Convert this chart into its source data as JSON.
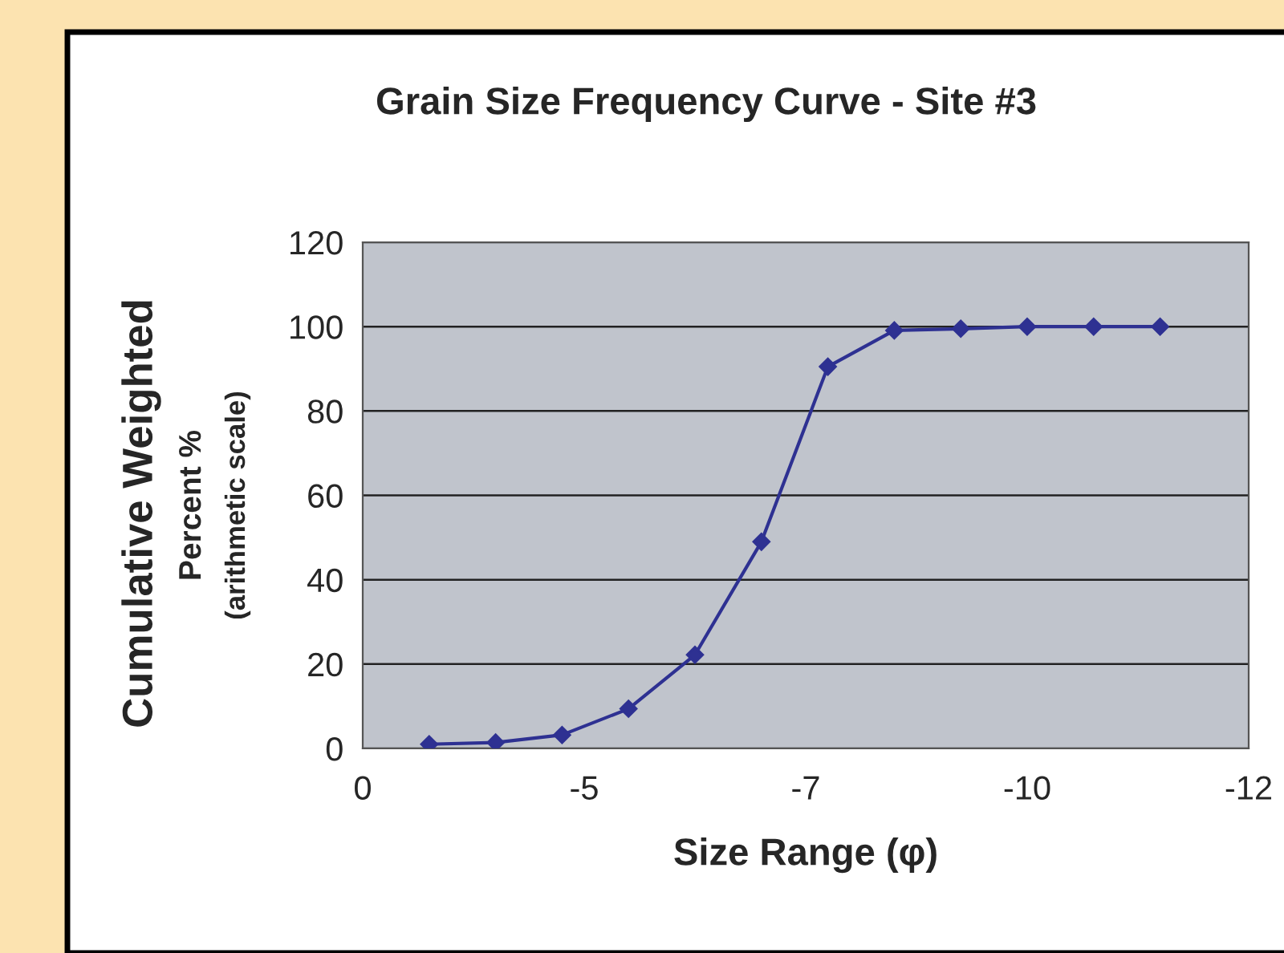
{
  "chart_data": {
    "type": "line",
    "title": "Grain Size Frequency Curve - Site #3",
    "xlabel": "Size Range (φ)",
    "ylabel": "Cumulative Weighted",
    "annotations": [
      "Percent %",
      "(arithmetic scale)"
    ],
    "categories": [
      "0",
      null,
      null,
      null,
      null,
      null,
      null,
      null,
      null,
      null,
      "-5",
      null,
      null,
      null,
      null,
      null,
      null,
      null,
      null,
      null,
      "-7",
      null,
      null,
      null,
      null,
      null,
      null,
      null,
      null,
      null,
      "-10",
      null,
      null,
      null,
      null,
      null,
      null,
      null,
      null,
      null,
      "-12"
    ],
    "series": [
      {
        "color": "#2e3192",
        "values": [
          null,
          null,
          null,
          1.0,
          null,
          null,
          1.4,
          null,
          null,
          3.2,
          null,
          null,
          9.4,
          null,
          null,
          22.2,
          null,
          null,
          49,
          null,
          null,
          90.5,
          null,
          null,
          99.1,
          null,
          null,
          99.5,
          null,
          null,
          100,
          null,
          null,
          100,
          null,
          null,
          100,
          null,
          null,
          null,
          null
        ]
      }
    ],
    "ylim": [
      0,
      120
    ],
    "yticks": [
      0,
      20,
      40,
      60,
      80,
      100,
      120
    ],
    "grid": "y",
    "marker": "diamond",
    "line_style": "solid"
  }
}
